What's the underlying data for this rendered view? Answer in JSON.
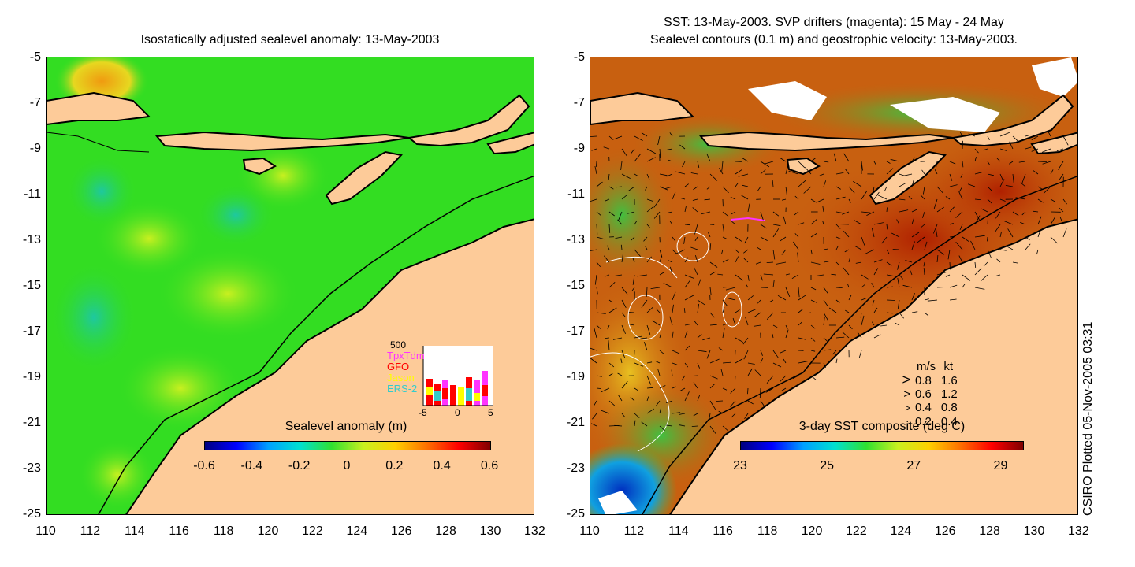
{
  "left_panel": {
    "title": "Isostatically adjusted sealevel anomaly: 13-May-2003",
    "colorbar_label": "Sealevel anomaly (m)",
    "colorbar_ticks": [
      "-0.6",
      "-0.4",
      "-0.2",
      "0",
      "0.2",
      "0.4",
      "0.6"
    ],
    "inset": {
      "y_label": "500",
      "legend": [
        {
          "label": "TpxTdm",
          "color": "#ff33ff"
        },
        {
          "label": "GFO",
          "color": "#ff0000"
        },
        {
          "label": "Jason",
          "color": "#ffff00"
        },
        {
          "label": "ERS-2",
          "color": "#33cccc"
        }
      ],
      "x_ticks": [
        "-5",
        "0",
        "5"
      ]
    }
  },
  "right_panel": {
    "title_line1": "SST: 13-May-2003. SVP drifters (magenta): 15 May - 24 May",
    "title_line2": "Sealevel contours (0.1 m) and geostrophic velocity: 13-May-2003.",
    "colorbar_label": "3-day SST composite (deg C)",
    "colorbar_ticks": [
      "23",
      "25",
      "27",
      "29"
    ],
    "speed_legend": {
      "header_ms": "m/s",
      "header_kt": "kt",
      "rows": [
        {
          "ms": "0.8",
          "kt": "1.6"
        },
        {
          "ms": "0.6",
          "kt": "1.2"
        },
        {
          "ms": "0.4",
          "kt": "0.8"
        },
        {
          "ms": "0.2",
          "kt": "0.4"
        }
      ]
    }
  },
  "axes": {
    "lat_ticks": [
      "-5",
      "-7",
      "-9",
      "-11",
      "-13",
      "-15",
      "-17",
      "-19",
      "-21",
      "-23",
      "-25"
    ],
    "lon_ticks": [
      "110",
      "112",
      "114",
      "116",
      "118",
      "120",
      "122",
      "124",
      "126",
      "128",
      "130",
      "132"
    ]
  },
  "credit": "CSIRO Plotted 05-Nov-2005 03:31",
  "colors": {
    "land": "#fdcb99",
    "ocean_green": "#33dd22",
    "coast": "#000000"
  }
}
